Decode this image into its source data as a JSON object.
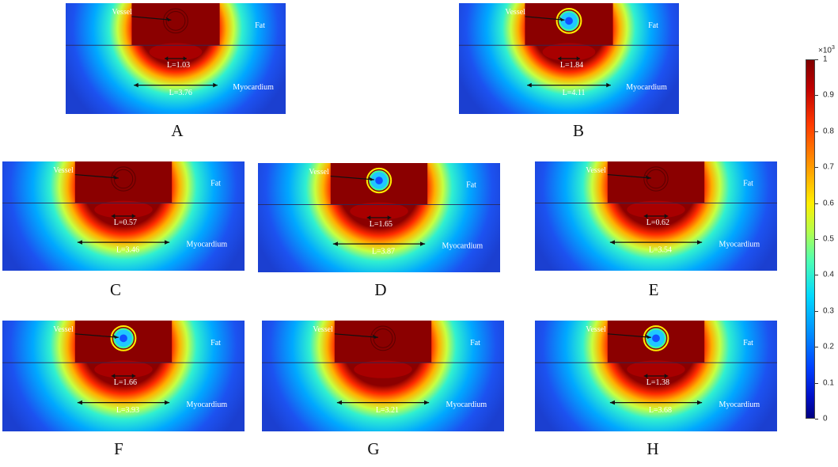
{
  "panels": [
    {
      "letter": "A",
      "l_short": "L=1.03",
      "l_long": "L=3.76",
      "vessel_visible": false
    },
    {
      "letter": "B",
      "l_short": "L=1.84",
      "l_long": "L=4.11",
      "vessel_visible": true
    },
    {
      "letter": "C",
      "l_short": "L=0.57",
      "l_long": "L=3.46",
      "vessel_visible": false
    },
    {
      "letter": "D",
      "l_short": "L=1.65",
      "l_long": "L=3.87",
      "vessel_visible": true
    },
    {
      "letter": "E",
      "l_short": "L=0.62",
      "l_long": "L=3.54",
      "vessel_visible": false
    },
    {
      "letter": "F",
      "l_short": "L=1.66",
      "l_long": "L=3.93",
      "vessel_visible": true
    },
    {
      "letter": "G",
      "l_short": "",
      "l_long": "L=3.21",
      "vessel_visible": false
    },
    {
      "letter": "H",
      "l_short": "L=1.38",
      "l_long": "L=3.68",
      "vessel_visible": true
    }
  ],
  "labels": {
    "vessel": "Vessel",
    "fat": "Fat",
    "myocardium": "Myocardium"
  },
  "colorbar": {
    "multiplier": "×10",
    "exponent": "3",
    "ticks": [
      "1",
      "0.9",
      "0.8",
      "0.7",
      "0.6",
      "0.5",
      "0.4",
      "0.3",
      "0.2",
      "0.1",
      "0"
    ]
  },
  "colors": {
    "hot": "#8b0000",
    "field": "#1b3fd0",
    "ring": "#00d8ff"
  }
}
